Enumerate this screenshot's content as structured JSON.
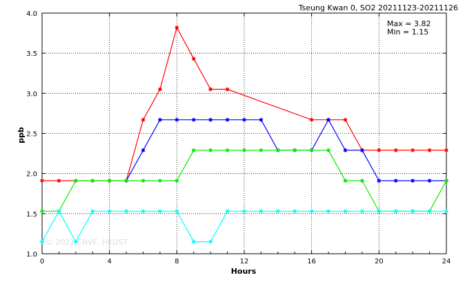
{
  "chart_data": {
    "type": "line",
    "title": "Tseung Kwan 0, SO2 20211123-20211126",
    "xlabel": "Hours",
    "ylabel": "ppb",
    "xlim": [
      0,
      24
    ],
    "ylim": [
      1.0,
      4.0
    ],
    "xticks": [
      0,
      4,
      8,
      12,
      16,
      20,
      24
    ],
    "yticks": [
      1.0,
      1.5,
      2.0,
      2.5,
      3.0,
      3.5,
      4.0
    ],
    "ytick_labels": [
      "1.0",
      "1.5",
      "2.0",
      "2.5",
      "3.0",
      "3.5",
      "4.0"
    ],
    "grid": true,
    "stats": [
      "Max = 3.82",
      "Min = 1.15"
    ],
    "watermark": "© 2021 ENVF, HKUST",
    "series": [
      {
        "color": "#ff0000",
        "points": [
          [
            0,
            1.91
          ],
          [
            1,
            1.91
          ],
          [
            2,
            1.91
          ],
          [
            3,
            1.91
          ],
          [
            4,
            1.91
          ],
          [
            5,
            1.91
          ],
          [
            6,
            2.67
          ],
          [
            7,
            3.05
          ],
          [
            8,
            3.82
          ],
          [
            9,
            3.43
          ],
          [
            10,
            3.05
          ],
          [
            11,
            3.05
          ],
          [
            16,
            2.67
          ],
          [
            17,
            2.67
          ],
          [
            18,
            2.67
          ],
          [
            19,
            2.29
          ],
          [
            20,
            2.29
          ],
          [
            21,
            2.29
          ],
          [
            22,
            2.29
          ],
          [
            23,
            2.29
          ],
          [
            24,
            2.29
          ]
        ]
      },
      {
        "color": "#0000ff",
        "points": [
          [
            5,
            1.91
          ],
          [
            6,
            2.29
          ],
          [
            7,
            2.67
          ],
          [
            8,
            2.67
          ],
          [
            9,
            2.67
          ],
          [
            10,
            2.67
          ],
          [
            11,
            2.67
          ],
          [
            12,
            2.67
          ],
          [
            13,
            2.67
          ],
          [
            14,
            2.29
          ],
          [
            15,
            2.29
          ],
          [
            16,
            2.29
          ],
          [
            17,
            2.67
          ],
          [
            18,
            2.29
          ],
          [
            19,
            2.29
          ],
          [
            20,
            1.91
          ],
          [
            21,
            1.91
          ],
          [
            22,
            1.91
          ],
          [
            23,
            1.91
          ],
          [
            24,
            1.91
          ]
        ]
      },
      {
        "color": "#00ee00",
        "points": [
          [
            0,
            1.53
          ],
          [
            1,
            1.53
          ],
          [
            2,
            1.91
          ],
          [
            3,
            1.91
          ],
          [
            4,
            1.91
          ],
          [
            5,
            1.91
          ],
          [
            6,
            1.91
          ],
          [
            7,
            1.91
          ],
          [
            8,
            1.91
          ],
          [
            9,
            2.29
          ],
          [
            10,
            2.29
          ],
          [
            11,
            2.29
          ],
          [
            12,
            2.29
          ],
          [
            13,
            2.29
          ],
          [
            14,
            2.29
          ],
          [
            15,
            2.29
          ],
          [
            16,
            2.29
          ],
          [
            17,
            2.29
          ],
          [
            18,
            1.91
          ],
          [
            19,
            1.91
          ],
          [
            20,
            1.53
          ],
          [
            21,
            1.53
          ],
          [
            22,
            1.53
          ],
          [
            23,
            1.53
          ],
          [
            24,
            1.91
          ]
        ]
      },
      {
        "color": "#00ffff",
        "points": [
          [
            0,
            1.15
          ],
          [
            1,
            1.53
          ],
          [
            2,
            1.15
          ],
          [
            3,
            1.53
          ],
          [
            4,
            1.53
          ],
          [
            5,
            1.53
          ],
          [
            6,
            1.53
          ],
          [
            7,
            1.53
          ],
          [
            8,
            1.53
          ],
          [
            9,
            1.15
          ],
          [
            10,
            1.15
          ],
          [
            11,
            1.53
          ],
          [
            12,
            1.53
          ],
          [
            13,
            1.53
          ],
          [
            14,
            1.53
          ],
          [
            15,
            1.53
          ],
          [
            16,
            1.53
          ],
          [
            17,
            1.53
          ],
          [
            18,
            1.53
          ],
          [
            19,
            1.53
          ],
          [
            20,
            1.53
          ],
          [
            21,
            1.53
          ],
          [
            22,
            1.53
          ],
          [
            23,
            1.53
          ],
          [
            24,
            1.53
          ]
        ]
      }
    ]
  }
}
